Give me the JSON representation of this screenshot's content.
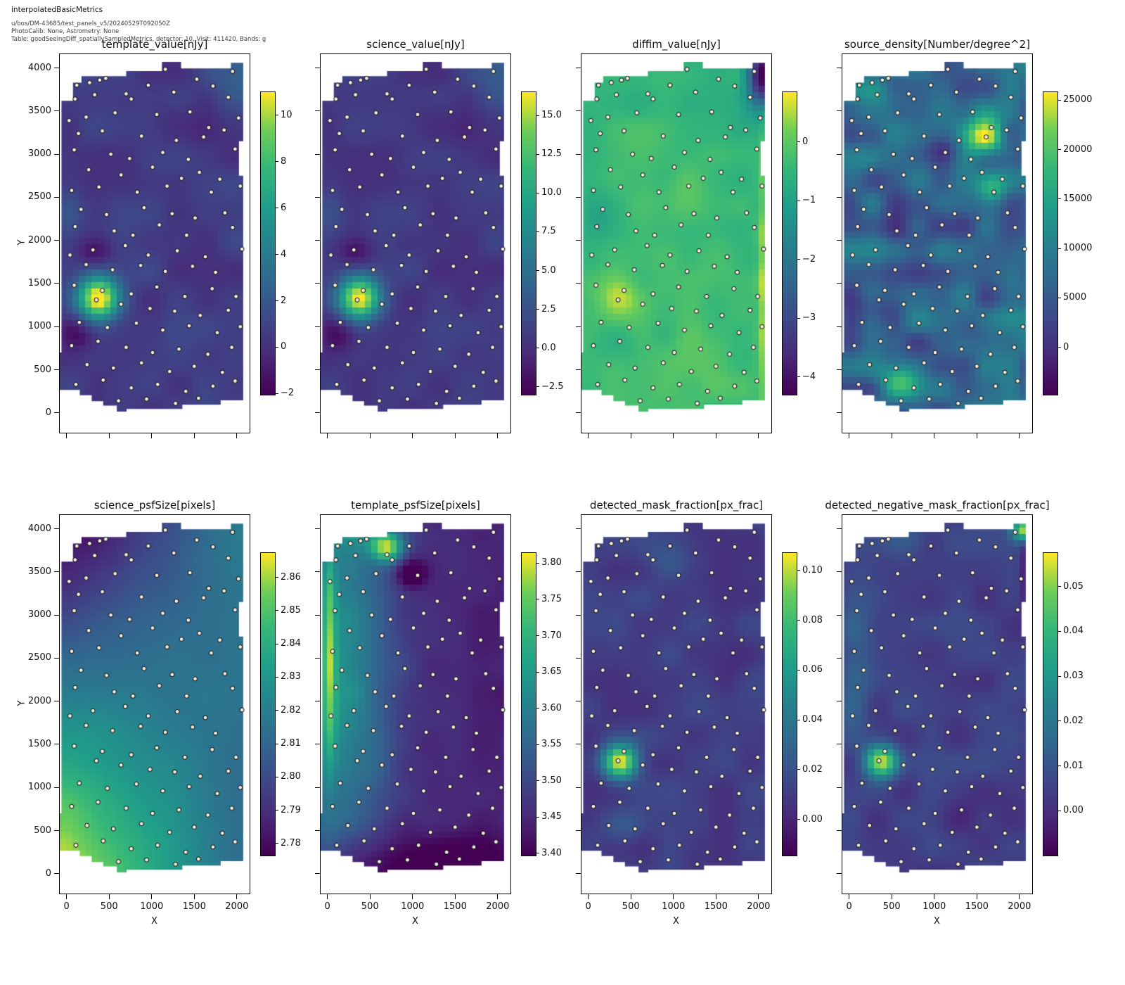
{
  "header": {
    "title": "interpolatedBasicMetrics",
    "line1": "u/bos/DM-43685/test_panels_v5/20240529T092050Z",
    "line2": "PhotoCalib: None, Astrometry: None",
    "line3": "Table: goodSeeingDiff_spatiallySampledMetrics, detector: 10, Visit: 411420, Bands: g"
  },
  "axes": {
    "xlabel": "X",
    "ylabel": "Y",
    "x_ticks": [
      0,
      500,
      1000,
      1500,
      2000
    ],
    "x_tick_labels": [
      "0",
      "500",
      "1000",
      "1500",
      "2000"
    ],
    "y_ticks": [
      0,
      500,
      1000,
      1500,
      2000,
      2500,
      3000,
      3500,
      4000
    ],
    "y_tick_labels": [
      "0",
      "500",
      "1000",
      "1500",
      "2000",
      "2500",
      "3000",
      "3500",
      "4000"
    ],
    "xlim": [
      -80,
      2150
    ],
    "ylim": [
      -230,
      4160
    ]
  },
  "colormap": "viridis",
  "footprint": [
    [
      -60,
      3620
    ],
    [
      75,
      3620
    ],
    [
      75,
      3830
    ],
    [
      175,
      3830
    ],
    [
      175,
      3905
    ],
    [
      700,
      3905
    ],
    [
      700,
      3965
    ],
    [
      1120,
      3965
    ],
    [
      1120,
      4070
    ],
    [
      1345,
      4070
    ],
    [
      1345,
      3995
    ],
    [
      1930,
      3995
    ],
    [
      1930,
      4060
    ],
    [
      2075,
      4060
    ],
    [
      2075,
      3150
    ],
    [
      2025,
      3150
    ],
    [
      2025,
      2750
    ],
    [
      2075,
      2750
    ],
    [
      2075,
      145
    ],
    [
      1810,
      145
    ],
    [
      1810,
      95
    ],
    [
      1360,
      95
    ],
    [
      1360,
      45
    ],
    [
      705,
      45
    ],
    [
      705,
      15
    ],
    [
      590,
      15
    ],
    [
      590,
      85
    ],
    [
      430,
      85
    ],
    [
      430,
      135
    ],
    [
      295,
      135
    ],
    [
      295,
      205
    ],
    [
      155,
      205
    ],
    [
      155,
      265
    ],
    [
      -95,
      265
    ],
    [
      -95,
      700
    ],
    [
      -60,
      700
    ]
  ],
  "sample_points": [
    [
      120,
      3800
    ],
    [
      460,
      3880
    ],
    [
      1160,
      3985
    ],
    [
      1950,
      3960
    ],
    [
      270,
      3830
    ],
    [
      390,
      3860
    ],
    [
      960,
      3800
    ],
    [
      1530,
      3870
    ],
    [
      1720,
      3790
    ],
    [
      100,
      3640
    ],
    [
      330,
      3690
    ],
    [
      700,
      3700
    ],
    [
      760,
      3640
    ],
    [
      1260,
      3720
    ],
    [
      1900,
      3660
    ],
    [
      30,
      3390
    ],
    [
      230,
      3430
    ],
    [
      570,
      3480
    ],
    [
      1060,
      3460
    ],
    [
      1450,
      3490
    ],
    [
      1670,
      3310
    ],
    [
      2020,
      3420
    ],
    [
      140,
      3240
    ],
    [
      420,
      3270
    ],
    [
      880,
      3210
    ],
    [
      1290,
      3160
    ],
    [
      1610,
      3200
    ],
    [
      1850,
      3280
    ],
    [
      90,
      3050
    ],
    [
      520,
      3000
    ],
    [
      740,
      2950
    ],
    [
      1130,
      3020
    ],
    [
      1430,
      2940
    ],
    [
      1980,
      3060
    ],
    [
      260,
      2820
    ],
    [
      640,
      2760
    ],
    [
      1010,
      2850
    ],
    [
      1350,
      2720
    ],
    [
      1560,
      2790
    ],
    [
      1800,
      2710
    ],
    [
      60,
      2580
    ],
    [
      380,
      2620
    ],
    [
      830,
      2560
    ],
    [
      1180,
      2630
    ],
    [
      1700,
      2560
    ],
    [
      2040,
      2630
    ],
    [
      170,
      2360
    ],
    [
      470,
      2300
    ],
    [
      910,
      2380
    ],
    [
      1240,
      2310
    ],
    [
      1510,
      2260
    ],
    [
      1860,
      2320
    ],
    [
      100,
      2160
    ],
    [
      560,
      2110
    ],
    [
      780,
      2060
    ],
    [
      1090,
      2180
    ],
    [
      1410,
      2060
    ],
    [
      1950,
      2150
    ],
    [
      40,
      1830
    ],
    [
      310,
      1890
    ],
    [
      690,
      1940
    ],
    [
      960,
      1830
    ],
    [
      1300,
      1880
    ],
    [
      1630,
      1810
    ],
    [
      2060,
      1900
    ],
    [
      230,
      1720
    ],
    [
      540,
      1660
    ],
    [
      870,
      1710
    ],
    [
      1160,
      1640
    ],
    [
      1480,
      1700
    ],
    [
      1750,
      1630
    ],
    [
      90,
      1480
    ],
    [
      420,
      1420
    ],
    [
      760,
      1380
    ],
    [
      1060,
      1460
    ],
    [
      1390,
      1350
    ],
    [
      1710,
      1440
    ],
    [
      1990,
      1350
    ],
    [
      350,
      1310
    ],
    [
      640,
      1260
    ],
    [
      980,
      1210
    ],
    [
      1270,
      1180
    ],
    [
      1570,
      1130
    ],
    [
      1900,
      1190
    ],
    [
      150,
      1050
    ],
    [
      480,
      990
    ],
    [
      820,
      1040
    ],
    [
      1130,
      960
    ],
    [
      1440,
      1010
    ],
    [
      1770,
      930
    ],
    [
      2040,
      1000
    ],
    [
      60,
      780
    ],
    [
      370,
      830
    ],
    [
      700,
      760
    ],
    [
      1010,
      700
    ],
    [
      1320,
      740
    ],
    [
      1660,
      680
    ],
    [
      1940,
      760
    ],
    [
      240,
      560
    ],
    [
      550,
      520
    ],
    [
      880,
      580
    ],
    [
      1210,
      480
    ],
    [
      1500,
      540
    ],
    [
      1830,
      470
    ],
    [
      110,
      330
    ],
    [
      430,
      380
    ],
    [
      760,
      290
    ],
    [
      1070,
      330
    ],
    [
      1400,
      250
    ],
    [
      1720,
      310
    ],
    [
      1980,
      370
    ],
    [
      610,
      140
    ],
    [
      940,
      160
    ],
    [
      1280,
      110
    ],
    [
      1550,
      170
    ]
  ],
  "chart_data": [
    {
      "type": "heatmap",
      "row": 0,
      "col": 0,
      "title": "template_value[nJy]",
      "vmin": -2.05,
      "vmax": 11.0,
      "cbar_ticks": [
        {
          "v": 10,
          "label": "10"
        },
        {
          "v": 8,
          "label": "8"
        },
        {
          "v": 6,
          "label": "6"
        },
        {
          "v": 4,
          "label": "4"
        },
        {
          "v": 2,
          "label": "2"
        },
        {
          "v": 0,
          "label": "0"
        },
        {
          "v": -2,
          "label": "−2"
        }
      ],
      "base": 0.55,
      "grad": [
        0,
        0
      ],
      "noise": {
        "amp": 0.75,
        "scale": 330,
        "seed": 3
      },
      "blobs": [
        [
          380,
          1330,
          170,
          170,
          10.8
        ],
        [
          330,
          1870,
          150,
          140,
          -2.3
        ],
        [
          150,
          900,
          140,
          130,
          -1.8
        ],
        [
          2060,
          3950,
          260,
          260,
          2.4
        ],
        [
          20,
          2350,
          120,
          280,
          1.3
        ],
        [
          1250,
          3350,
          260,
          220,
          -0.9
        ],
        [
          700,
          2950,
          220,
          200,
          -0.6
        ],
        [
          90,
          280,
          160,
          140,
          0.8
        ]
      ]
    },
    {
      "type": "heatmap",
      "row": 0,
      "col": 1,
      "title": "science_value[nJy]",
      "vmin": -3.0,
      "vmax": 16.5,
      "cbar_ticks": [
        {
          "v": 15,
          "label": "15.0"
        },
        {
          "v": 12.5,
          "label": "12.5"
        },
        {
          "v": 10,
          "label": "10.0"
        },
        {
          "v": 7.5,
          "label": "7.5"
        },
        {
          "v": 5,
          "label": "5.0"
        },
        {
          "v": 2.5,
          "label": "2.5"
        },
        {
          "v": 0,
          "label": "0.0"
        },
        {
          "v": -2.5,
          "label": "−2.5"
        }
      ],
      "base": 0.7,
      "grad": [
        0,
        0
      ],
      "noise": {
        "amp": 1.0,
        "scale": 330,
        "seed": 3
      },
      "blobs": [
        [
          380,
          1330,
          170,
          170,
          15.6
        ],
        [
          330,
          1870,
          150,
          140,
          -3.2
        ],
        [
          150,
          900,
          140,
          130,
          -2.6
        ],
        [
          2060,
          3950,
          260,
          260,
          3.4
        ],
        [
          20,
          2350,
          120,
          280,
          1.8
        ],
        [
          1250,
          3350,
          260,
          220,
          -1.2
        ],
        [
          700,
          2950,
          220,
          200,
          -0.8
        ],
        [
          90,
          280,
          160,
          140,
          1.1
        ]
      ]
    },
    {
      "type": "heatmap",
      "row": 0,
      "col": 2,
      "title": "diffim_value[nJy]",
      "vmin": -4.3,
      "vmax": 0.85,
      "cbar_ticks": [
        {
          "v": 0,
          "label": "0"
        },
        {
          "v": -1,
          "label": "−1"
        },
        {
          "v": -2,
          "label": "−2"
        },
        {
          "v": -3,
          "label": "−3"
        },
        {
          "v": -4,
          "label": "−4"
        }
      ],
      "base": -0.28,
      "grad": [
        0,
        -0.28
      ],
      "noise": {
        "amp": 0.22,
        "scale": 300,
        "seed": 7
      },
      "blobs": [
        [
          380,
          1330,
          180,
          170,
          0.85
        ],
        [
          2090,
          1450,
          55,
          1150,
          1.15
        ],
        [
          2060,
          3920,
          130,
          260,
          -4.2
        ],
        [
          1050,
          2500,
          260,
          240,
          0.4
        ],
        [
          620,
          3100,
          220,
          200,
          0.3
        ],
        [
          1250,
          600,
          260,
          220,
          0.28
        ],
        [
          160,
          2300,
          160,
          200,
          -0.45
        ],
        [
          330,
          750,
          180,
          160,
          -0.35
        ],
        [
          900,
          3900,
          300,
          200,
          0.15
        ],
        [
          1500,
          1800,
          260,
          240,
          0.25
        ]
      ]
    },
    {
      "type": "heatmap",
      "row": 0,
      "col": 3,
      "title": "source_density[Number/degree^2]",
      "vmin": -4800,
      "vmax": 25800,
      "cbar_ticks": [
        {
          "v": 25000,
          "label": "25000"
        },
        {
          "v": 20000,
          "label": "20000"
        },
        {
          "v": 15000,
          "label": "15000"
        },
        {
          "v": 10000,
          "label": "10000"
        },
        {
          "v": 5000,
          "label": "5000"
        },
        {
          "v": 0,
          "label": "0"
        }
      ],
      "base": 6200,
      "grad": [
        0,
        0
      ],
      "noise": {
        "amp": 5200,
        "scale": 270,
        "seed": 11
      },
      "blobs": [
        [
          1600,
          3200,
          150,
          170,
          19500
        ],
        [
          1680,
          2580,
          130,
          130,
          9500
        ],
        [
          600,
          350,
          170,
          140,
          13000
        ],
        [
          300,
          3550,
          200,
          180,
          6500
        ],
        [
          1100,
          3050,
          140,
          130,
          -6000
        ],
        [
          850,
          2150,
          220,
          200,
          -4500
        ],
        [
          300,
          1200,
          170,
          160,
          -5200
        ],
        [
          1450,
          950,
          180,
          160,
          -4200
        ],
        [
          1950,
          1500,
          150,
          300,
          4000
        ],
        [
          100,
          2800,
          150,
          200,
          3500
        ]
      ]
    },
    {
      "type": "heatmap",
      "row": 1,
      "col": 0,
      "title": "science_psfSize[pixels]",
      "vmin": 2.7764,
      "vmax": 2.8673,
      "cbar_ticks": [
        {
          "v": 2.86,
          "label": "2.86"
        },
        {
          "v": 2.85,
          "label": "2.85"
        },
        {
          "v": 2.84,
          "label": "2.84"
        },
        {
          "v": 2.83,
          "label": "2.83"
        },
        {
          "v": 2.82,
          "label": "2.82"
        },
        {
          "v": 2.81,
          "label": "2.81"
        },
        {
          "v": 2.8,
          "label": "2.80"
        },
        {
          "v": 2.79,
          "label": "2.79"
        },
        {
          "v": 2.78,
          "label": "2.78"
        }
      ],
      "bilinear": [
        2.868,
        2.812,
        2.776,
        2.818
      ],
      "noise": {
        "amp": 0.0015,
        "scale": 420,
        "seed": 5
      },
      "blobs": []
    },
    {
      "type": "heatmap",
      "row": 1,
      "col": 1,
      "title": "template_psfSize[pixels]",
      "vmin": 3.397,
      "vmax": 3.814,
      "cbar_ticks": [
        {
          "v": 3.8,
          "label": "3.80"
        },
        {
          "v": 3.75,
          "label": "3.75"
        },
        {
          "v": 3.7,
          "label": "3.70"
        },
        {
          "v": 3.65,
          "label": "3.65"
        },
        {
          "v": 3.6,
          "label": "3.60"
        },
        {
          "v": 3.55,
          "label": "3.55"
        },
        {
          "v": 3.5,
          "label": "3.50"
        },
        {
          "v": 3.45,
          "label": "3.45"
        },
        {
          "v": 3.4,
          "label": "3.40"
        }
      ],
      "base": 3.47,
      "grad": [
        -0.03,
        0
      ],
      "noise": {
        "amp": 0.013,
        "scale": 300,
        "seed": 9
      },
      "blobs": [
        [
          100,
          2300,
          450,
          1600,
          0.17
        ],
        [
          20,
          2600,
          55,
          900,
          0.16
        ],
        [
          700,
          3780,
          130,
          120,
          0.27
        ],
        [
          980,
          3480,
          120,
          110,
          -0.13
        ],
        [
          900,
          60,
          1000,
          280,
          -0.09
        ],
        [
          400,
          3950,
          300,
          150,
          0.08
        ]
      ]
    },
    {
      "type": "heatmap",
      "row": 1,
      "col": 2,
      "title": "detected_mask_fraction[px_frac]",
      "vmin": -0.0145,
      "vmax": 0.107,
      "cbar_ticks": [
        {
          "v": 0.1,
          "label": "0.10"
        },
        {
          "v": 0.08,
          "label": "0.08"
        },
        {
          "v": 0.06,
          "label": "0.06"
        },
        {
          "v": 0.04,
          "label": "0.04"
        },
        {
          "v": 0.02,
          "label": "0.02"
        },
        {
          "v": 0.0,
          "label": "0.00"
        }
      ],
      "base": 0.011,
      "grad": [
        0,
        0
      ],
      "noise": {
        "amp": 0.007,
        "scale": 320,
        "seed": 13
      },
      "blobs": [
        [
          380,
          1300,
          145,
          140,
          0.094
        ],
        [
          380,
          560,
          170,
          150,
          0.018
        ],
        [
          950,
          3720,
          220,
          180,
          0.012
        ],
        [
          1700,
          2500,
          200,
          180,
          -0.008
        ]
      ]
    },
    {
      "type": "heatmap",
      "row": 1,
      "col": 3,
      "title": "detected_negative_mask_fraction[px_frac]",
      "vmin": -0.01,
      "vmax": 0.0575,
      "cbar_ticks": [
        {
          "v": 0.05,
          "label": "0.05"
        },
        {
          "v": 0.04,
          "label": "0.04"
        },
        {
          "v": 0.03,
          "label": "0.03"
        },
        {
          "v": 0.02,
          "label": "0.02"
        },
        {
          "v": 0.01,
          "label": "0.01"
        },
        {
          "v": 0.0,
          "label": "0.00"
        }
      ],
      "base": 0.0045,
      "grad": [
        0,
        0
      ],
      "noise": {
        "amp": 0.0042,
        "scale": 320,
        "seed": 17
      },
      "blobs": [
        [
          380,
          1300,
          135,
          130,
          0.051
        ],
        [
          2060,
          3990,
          100,
          90,
          0.05
        ],
        [
          2090,
          3500,
          55,
          330,
          -0.011
        ],
        [
          70,
          2550,
          150,
          750,
          0.009
        ],
        [
          600,
          3900,
          250,
          150,
          0.006
        ],
        [
          1500,
          700,
          250,
          200,
          -0.004
        ]
      ]
    }
  ]
}
